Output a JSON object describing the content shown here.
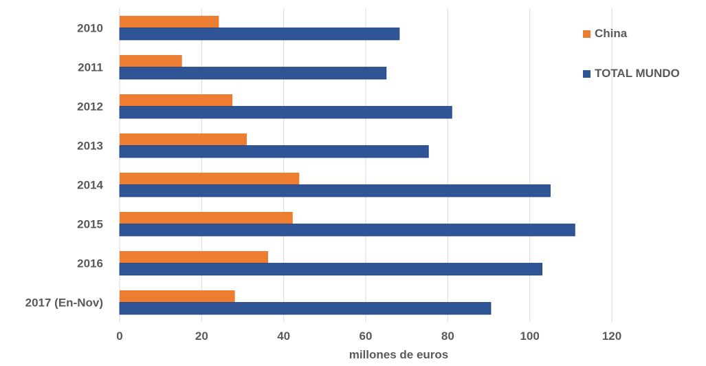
{
  "chart_data": {
    "type": "bar",
    "orientation": "horizontal",
    "categories": [
      "2010",
      "2011",
      "2012",
      "2013",
      "2014",
      "2015",
      "2016",
      "2017 (En-Nov)"
    ],
    "series": [
      {
        "name": "China",
        "color": "#ED7D31",
        "values": [
          24.2,
          15.2,
          27.5,
          31,
          43.8,
          42.2,
          36.2,
          28.1
        ]
      },
      {
        "name": "TOTAL MUNDO",
        "color": "#2F5597",
        "values": [
          68.2,
          65,
          81,
          75.3,
          105,
          111,
          103,
          90.5
        ]
      }
    ],
    "xlim": [
      0,
      120
    ],
    "xticks": [
      "0",
      "20",
      "40",
      "60",
      "80",
      "100",
      "120"
    ],
    "xlabel": "millones de euros",
    "ylabel": "",
    "title": "",
    "grid": "vertical",
    "legend": "top-right"
  }
}
